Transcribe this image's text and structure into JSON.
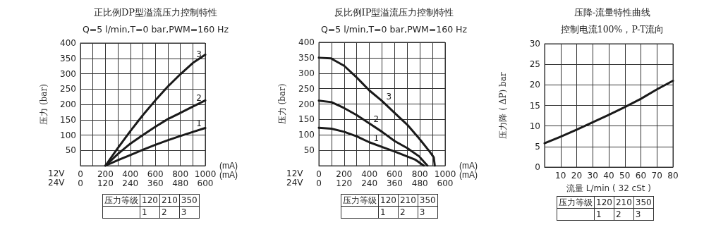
{
  "chart_data": [
    {
      "type": "line",
      "title": "正比例DP型溢流压力控制特性",
      "subtitle": "Q=5 l/min,T=0 bar,PWM=160 Hz",
      "xlabel": "(mA)",
      "x2label": "(mA)",
      "ylabel": "压力 (bar)",
      "xlim": [
        0,
        1000
      ],
      "xticks": [
        0,
        {
          "value": 100,
          "label": null
        },
        200,
        {
          "value": 300,
          "label": null
        },
        400,
        {
          "value": 500,
          "label": null
        },
        600,
        {
          "value": 700,
          "label": null
        },
        800,
        {
          "value": 900,
          "label": null
        },
        1000
      ],
      "x2lim": [
        0,
        600
      ],
      "x2ticks": [
        0,
        120,
        240,
        360,
        480,
        600
      ],
      "ylim": [
        0,
        400
      ],
      "yticks": [
        {
          "value": 0,
          "label": null
        },
        50,
        100,
        150,
        200,
        250,
        300,
        350,
        400
      ],
      "grid": true,
      "marker": "none",
      "line_style": "solid",
      "series": [
        {
          "name": "1",
          "color": "#1a1a1a",
          "x": [
            200,
            300,
            400,
            500,
            600,
            700,
            800,
            900,
            1000
          ],
          "values": [
            0,
            18,
            35,
            52,
            68,
            83,
            97,
            110,
            123
          ]
        },
        {
          "name": "2",
          "color": "#1a1a1a",
          "x": [
            200,
            300,
            400,
            500,
            600,
            700,
            800,
            900,
            1000
          ],
          "values": [
            0,
            38,
            72,
            100,
            127,
            152,
            172,
            193,
            213
          ]
        },
        {
          "name": "3",
          "color": "#1a1a1a",
          "x": [
            200,
            300,
            400,
            500,
            600,
            700,
            800,
            900,
            1000
          ],
          "values": [
            0,
            58,
            113,
            165,
            213,
            258,
            298,
            335,
            362
          ]
        }
      ],
      "annotations": [
        "12V",
        "24V",
        "压力等级",
        "120",
        "210",
        "350",
        "1",
        "2",
        "3"
      ]
    },
    {
      "type": "line",
      "title": "反比例IP型溢流压力控制特性",
      "subtitle": "Q=5 l/min,T=0 bar,PWM=160 Hz",
      "xlabel": "(mA)",
      "x2label": "(mA)",
      "ylabel": "压力 (bar)",
      "xlim": [
        0,
        1000
      ],
      "xticks": [
        0,
        {
          "value": 100,
          "label": null
        },
        200,
        {
          "value": 300,
          "label": null
        },
        400,
        {
          "value": 500,
          "label": null
        },
        600,
        {
          "value": 700,
          "label": null
        },
        800,
        {
          "value": 900,
          "label": null
        },
        1000
      ],
      "x2lim": [
        0,
        600
      ],
      "x2ticks": [
        0,
        120,
        240,
        360,
        480,
        600
      ],
      "ylim": [
        0,
        400
      ],
      "yticks": [
        {
          "value": 0,
          "label": null
        },
        50,
        100,
        150,
        200,
        250,
        300,
        350,
        400
      ],
      "grid": true,
      "marker": "none",
      "line_style": "solid",
      "series": [
        {
          "name": "1",
          "color": "#1a1a1a",
          "x": [
            0,
            100,
            200,
            300,
            400,
            500,
            600,
            700,
            766,
            832
          ],
          "values": [
            123,
            120,
            110,
            95,
            76,
            61,
            46,
            30,
            19,
            0
          ]
        },
        {
          "name": "2",
          "color": "#1a1a1a",
          "x": [
            0,
            100,
            200,
            300,
            400,
            500,
            600,
            700,
            795,
            860
          ],
          "values": [
            211,
            206,
            187,
            164,
            137,
            110,
            80,
            57,
            30,
            0
          ]
        },
        {
          "name": "3",
          "color": "#1a1a1a",
          "x": [
            0,
            95,
            200,
            300,
            400,
            500,
            600,
            700,
            795,
            877,
            910,
            918
          ],
          "values": [
            350,
            348,
            324,
            286,
            244,
            210,
            171,
            133,
            88,
            46,
            27,
            0
          ]
        }
      ],
      "annotations": [
        "12V",
        "24V",
        "压力等级",
        "120",
        "210",
        "350",
        "1",
        "2",
        "3"
      ]
    },
    {
      "type": "line",
      "title": "压降-流量特性曲线",
      "subtitle": "控制电流100%，P-T流向",
      "xlabel": "流量 L/min ( 32 cSt )",
      "ylabel": "压力降 ( ΔP) bar",
      "xlim": [
        0,
        80
      ],
      "xticks": [
        {
          "value": 0,
          "label": null
        },
        10,
        20,
        30,
        40,
        50,
        60,
        70,
        80
      ],
      "ylim": [
        0,
        30
      ],
      "yticks": [
        0,
        5,
        10,
        15,
        20,
        25,
        30
      ],
      "grid": true,
      "marker": "none",
      "line_style": "solid",
      "series": [
        {
          "color": "#1a1a1a",
          "x": [
            0,
            10,
            20,
            30,
            40,
            50,
            60,
            70,
            80
          ],
          "values": [
            5.8,
            7.4,
            9.1,
            10.9,
            12.7,
            14.6,
            16.6,
            18.9,
            21
          ]
        }
      ],
      "annotations": [
        "压力等级",
        "120",
        "210",
        "350",
        "1",
        "2",
        "3"
      ]
    }
  ]
}
